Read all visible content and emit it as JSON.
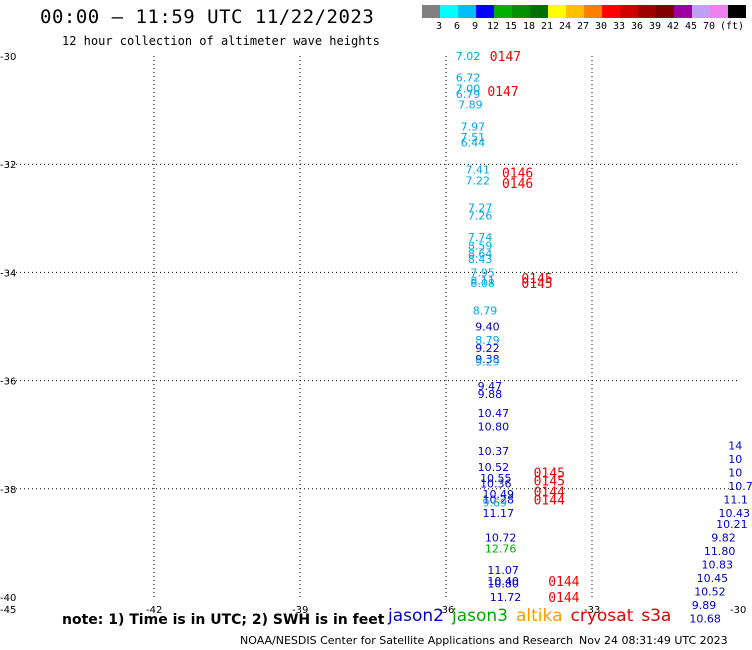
{
  "title": "00:00 – 11:59 UTC 11/22/2023",
  "subtitle": "12 hour collection of altimeter wave heights",
  "colorbar": {
    "colors": [
      "#808080",
      "#00ffff",
      "#00bfff",
      "#0000ff",
      "#00b000",
      "#009000",
      "#007000",
      "#ffff00",
      "#ffc000",
      "#ff8000",
      "#ff0000",
      "#d00000",
      "#a00000",
      "#800000",
      "#a000a0",
      "#c0a0f0",
      "#f080f0",
      "#000000"
    ],
    "labels": [
      "3",
      "6",
      "9",
      "12",
      "15",
      "18",
      "21",
      "24",
      "27",
      "30",
      "33",
      "36",
      "39",
      "42",
      "45",
      "70"
    ],
    "unit": "(ft)"
  },
  "axes": {
    "lon_ticks": [
      "-45",
      "-42",
      "-39",
      "-36",
      "-33",
      "-30"
    ],
    "lat_ticks": [
      "-30",
      "-32",
      "-34",
      "-36",
      "-38",
      "-40"
    ]
  },
  "colors": {
    "jason2": "#0000cc",
    "jason3": "#00aa00",
    "altika": "#ff9900",
    "cryosat": "#ee0000",
    "s3a": "#dd0000",
    "light": "#00a8e8"
  },
  "observations": [
    {
      "lon": -35.8,
      "lat": -30.0,
      "v": "7.02",
      "c": "light"
    },
    {
      "lon": -35.8,
      "lat": -30.4,
      "v": "6.72",
      "c": "light"
    },
    {
      "lon": -35.8,
      "lat": -30.6,
      "v": "7.00",
      "c": "light"
    },
    {
      "lon": -35.8,
      "lat": -30.7,
      "v": "6.79",
      "c": "light"
    },
    {
      "lon": -35.75,
      "lat": -30.9,
      "v": "7.89",
      "c": "light"
    },
    {
      "lon": -35.7,
      "lat": -31.3,
      "v": "7.97",
      "c": "light"
    },
    {
      "lon": -35.7,
      "lat": -31.5,
      "v": "7.51",
      "c": "light"
    },
    {
      "lon": -35.7,
      "lat": -31.6,
      "v": "6.44",
      "c": "light"
    },
    {
      "lon": -35.6,
      "lat": -32.1,
      "v": "7.41",
      "c": "light"
    },
    {
      "lon": -35.6,
      "lat": -32.3,
      "v": "7.22",
      "c": "light"
    },
    {
      "lon": -35.55,
      "lat": -32.8,
      "v": "7.27",
      "c": "light"
    },
    {
      "lon": -35.55,
      "lat": -32.95,
      "v": "7.26",
      "c": "light"
    },
    {
      "lon": -35.55,
      "lat": -33.35,
      "v": "7.74",
      "c": "light"
    },
    {
      "lon": -35.55,
      "lat": -33.5,
      "v": "8.59",
      "c": "light"
    },
    {
      "lon": -35.55,
      "lat": -33.65,
      "v": "8.64",
      "c": "light"
    },
    {
      "lon": -35.55,
      "lat": -33.75,
      "v": "8.43",
      "c": "light"
    },
    {
      "lon": -35.5,
      "lat": -34.0,
      "v": "7.95",
      "c": "light"
    },
    {
      "lon": -35.5,
      "lat": -34.15,
      "v": "8.11",
      "c": "light"
    },
    {
      "lon": -35.5,
      "lat": -34.2,
      "v": "8.08",
      "c": "light"
    },
    {
      "lon": -35.45,
      "lat": -34.7,
      "v": "8.79",
      "c": "light"
    },
    {
      "lon": -35.4,
      "lat": -35.0,
      "v": "9.40",
      "c": "jason2"
    },
    {
      "lon": -35.4,
      "lat": -35.25,
      "v": "8.79",
      "c": "light"
    },
    {
      "lon": -35.4,
      "lat": -35.4,
      "v": "9.22",
      "c": "jason2"
    },
    {
      "lon": -35.4,
      "lat": -35.6,
      "v": "9.38",
      "c": "jason2"
    },
    {
      "lon": -35.4,
      "lat": -35.65,
      "v": "9.29",
      "c": "light"
    },
    {
      "lon": -35.35,
      "lat": -36.1,
      "v": "9.47",
      "c": "jason2"
    },
    {
      "lon": -35.35,
      "lat": -36.25,
      "v": "9.88",
      "c": "jason2"
    },
    {
      "lon": -35.35,
      "lat": -36.6,
      "v": "10.47",
      "c": "jason2"
    },
    {
      "lon": -35.35,
      "lat": -36.85,
      "v": "10.80",
      "c": "jason2"
    },
    {
      "lon": -35.35,
      "lat": -37.3,
      "v": "10.37",
      "c": "jason2"
    },
    {
      "lon": -35.35,
      "lat": -37.6,
      "v": "10.52",
      "c": "jason2"
    },
    {
      "lon": -35.3,
      "lat": -37.8,
      "v": "10.55",
      "c": "jason2"
    },
    {
      "lon": -35.3,
      "lat": -37.9,
      "v": "10.36",
      "c": "jason2"
    },
    {
      "lon": -35.25,
      "lat": -38.1,
      "v": "10.49",
      "c": "jason2"
    },
    {
      "lon": -35.25,
      "lat": -38.2,
      "v": "10.28",
      "c": "jason2"
    },
    {
      "lon": -35.25,
      "lat": -38.25,
      "v": "9.69",
      "c": "light"
    },
    {
      "lon": -35.25,
      "lat": -38.45,
      "v": "11.17",
      "c": "jason2"
    },
    {
      "lon": -35.2,
      "lat": -38.9,
      "v": "10.72",
      "c": "jason2"
    },
    {
      "lon": -35.2,
      "lat": -39.1,
      "v": "12.76",
      "c": "jason3"
    },
    {
      "lon": -35.15,
      "lat": -39.5,
      "v": "11.07",
      "c": "jason2"
    },
    {
      "lon": -35.15,
      "lat": -39.7,
      "v": "10.40",
      "c": "jason2"
    },
    {
      "lon": -35.15,
      "lat": -39.75,
      "v": "10.80",
      "c": "jason2"
    },
    {
      "lon": -35.1,
      "lat": -40.0,
      "v": "11.72",
      "c": "jason2"
    },
    {
      "lon": -30.2,
      "lat": -37.2,
      "v": "14",
      "c": "jason2"
    },
    {
      "lon": -30.2,
      "lat": -37.45,
      "v": "10",
      "c": "jason2"
    },
    {
      "lon": -30.2,
      "lat": -37.7,
      "v": "10",
      "c": "jason2"
    },
    {
      "lon": -30.2,
      "lat": -37.95,
      "v": "10.7",
      "c": "jason2"
    },
    {
      "lon": -30.3,
      "lat": -38.2,
      "v": "11.1",
      "c": "jason2"
    },
    {
      "lon": -30.4,
      "lat": -38.45,
      "v": "10.43",
      "c": "jason2"
    },
    {
      "lon": -30.45,
      "lat": -38.65,
      "v": "10.21",
      "c": "jason2"
    },
    {
      "lon": -30.55,
      "lat": -38.9,
      "v": "9.82",
      "c": "jason2"
    },
    {
      "lon": -30.7,
      "lat": -39.15,
      "v": "11.80",
      "c": "jason2"
    },
    {
      "lon": -30.75,
      "lat": -39.4,
      "v": "10.83",
      "c": "jason2"
    },
    {
      "lon": -30.85,
      "lat": -39.65,
      "v": "10.45",
      "c": "jason2"
    },
    {
      "lon": -30.9,
      "lat": -39.9,
      "v": "10.52",
      "c": "jason2"
    },
    {
      "lon": -30.95,
      "lat": -40.15,
      "v": "9.89",
      "c": "jason2"
    },
    {
      "lon": -31.0,
      "lat": -40.4,
      "v": "10.68",
      "c": "jason2"
    }
  ],
  "time_labels": [
    {
      "lon": -35.1,
      "lat": -30.0,
      "v": "0147"
    },
    {
      "lon": -35.15,
      "lat": -30.65,
      "v": "0147"
    },
    {
      "lon": -34.85,
      "lat": -32.15,
      "v": "0146"
    },
    {
      "lon": -34.85,
      "lat": -32.35,
      "v": "0146"
    },
    {
      "lon": -34.45,
      "lat": -34.1,
      "v": "0145"
    },
    {
      "lon": -34.45,
      "lat": -34.2,
      "v": "0145"
    },
    {
      "lon": -34.2,
      "lat": -37.7,
      "v": "0145"
    },
    {
      "lon": -34.2,
      "lat": -37.85,
      "v": "0145"
    },
    {
      "lon": -34.2,
      "lat": -38.05,
      "v": "0144"
    },
    {
      "lon": -34.2,
      "lat": -38.2,
      "v": "0144"
    },
    {
      "lon": -33.9,
      "lat": -39.7,
      "v": "0144"
    },
    {
      "lon": -33.9,
      "lat": -40.0,
      "v": "0144"
    }
  ],
  "note": "note: 1) Time is in UTC; 2) SWH is in feet",
  "satellites": [
    {
      "name": "jason2",
      "color": "#0000cc"
    },
    {
      "name": "jason3",
      "color": "#00aa00"
    },
    {
      "name": "altika",
      "color": "#ff9900"
    },
    {
      "name": "cryosat",
      "color": "#ee0000"
    },
    {
      "name": "s3a",
      "color": "#dd0000"
    }
  ],
  "credit": "NOAA/NESDIS Center for Satellite Applications and Research",
  "timestamp": "Nov 24 08:31:49 UTC 2023"
}
